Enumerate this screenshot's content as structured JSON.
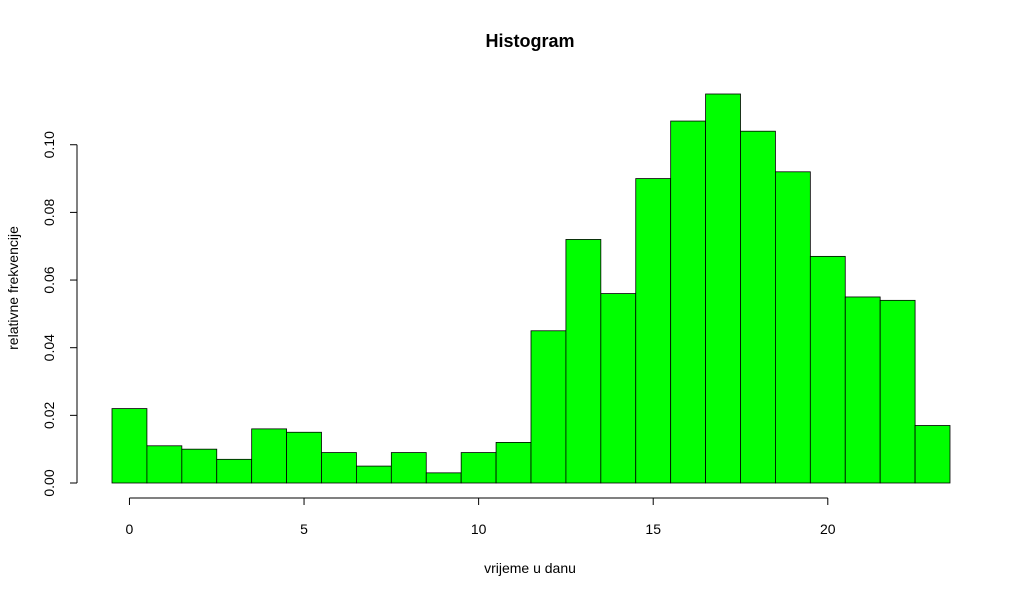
{
  "chart_data": {
    "type": "bar",
    "title": "Histogram",
    "xlabel": "vrijeme u danu",
    "ylabel": "relativne frekvencije",
    "bar_color": "#00ff00",
    "x_ticks": [
      0,
      5,
      10,
      15,
      20
    ],
    "y_ticks": [
      0.0,
      0.02,
      0.04,
      0.06,
      0.08,
      0.1
    ],
    "y_tick_labels": [
      "0.00",
      "0.02",
      "0.04",
      "0.06",
      "0.08",
      "0.10"
    ],
    "xlim": [
      -0.5,
      23.5
    ],
    "ylim": [
      0,
      0.115
    ],
    "bins": [
      {
        "x0": -0.5,
        "x1": 0.5,
        "value": 0.022
      },
      {
        "x0": 0.5,
        "x1": 1.5,
        "value": 0.011
      },
      {
        "x0": 1.5,
        "x1": 2.5,
        "value": 0.01
      },
      {
        "x0": 2.5,
        "x1": 3.5,
        "value": 0.007
      },
      {
        "x0": 3.5,
        "x1": 4.5,
        "value": 0.016
      },
      {
        "x0": 4.5,
        "x1": 5.5,
        "value": 0.015
      },
      {
        "x0": 5.5,
        "x1": 6.5,
        "value": 0.009
      },
      {
        "x0": 6.5,
        "x1": 7.5,
        "value": 0.005
      },
      {
        "x0": 7.5,
        "x1": 8.5,
        "value": 0.009
      },
      {
        "x0": 8.5,
        "x1": 9.5,
        "value": 0.003
      },
      {
        "x0": 9.5,
        "x1": 10.5,
        "value": 0.009
      },
      {
        "x0": 10.5,
        "x1": 11.5,
        "value": 0.012
      },
      {
        "x0": 11.5,
        "x1": 12.5,
        "value": 0.045
      },
      {
        "x0": 12.5,
        "x1": 13.5,
        "value": 0.072
      },
      {
        "x0": 13.5,
        "x1": 14.5,
        "value": 0.056
      },
      {
        "x0": 14.5,
        "x1": 15.5,
        "value": 0.09
      },
      {
        "x0": 15.5,
        "x1": 16.5,
        "value": 0.107
      },
      {
        "x0": 16.5,
        "x1": 17.5,
        "value": 0.115
      },
      {
        "x0": 17.5,
        "x1": 18.5,
        "value": 0.104
      },
      {
        "x0": 18.5,
        "x1": 19.5,
        "value": 0.092
      },
      {
        "x0": 19.5,
        "x1": 20.5,
        "value": 0.067
      },
      {
        "x0": 20.5,
        "x1": 21.5,
        "value": 0.055
      },
      {
        "x0": 21.5,
        "x1": 22.5,
        "value": 0.054
      },
      {
        "x0": 22.5,
        "x1": 23.5,
        "value": 0.017
      }
    ]
  }
}
